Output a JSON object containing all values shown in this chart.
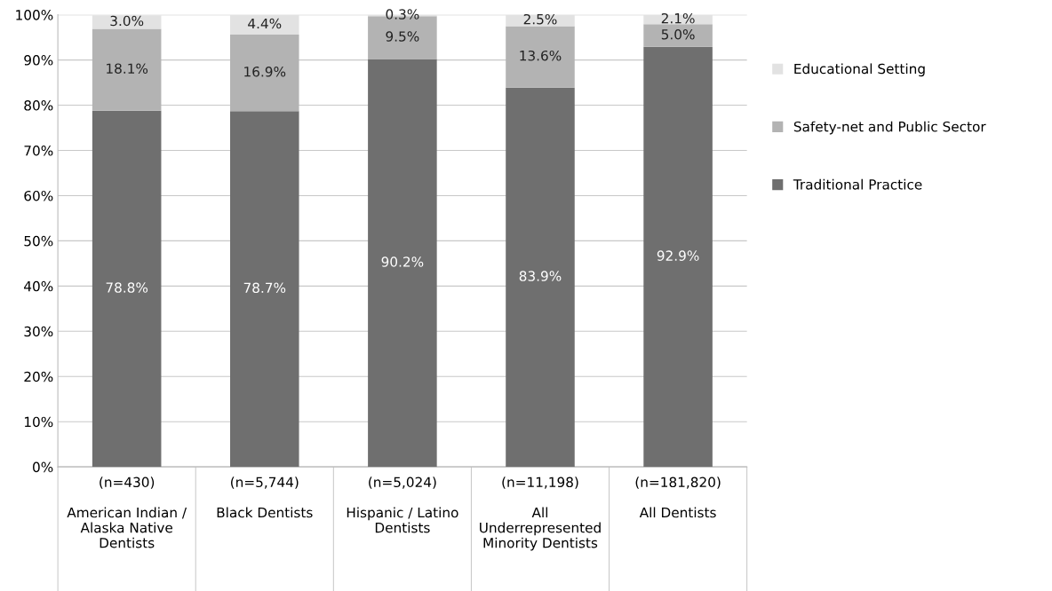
{
  "chart_data": {
    "type": "bar",
    "stacked": true,
    "categories": [
      "(n=430)\n\nAmerican Indian /\nAlaska Native\nDentists",
      "(n=5,744)\n\nBlack Dentists\n\n",
      "(n=5,024)\n\nHispanic / Latino\nDentists\n",
      "(n=11,198)\n\nAll\nUnderrepresented\nMinority Dentists",
      "(n=181,820)\n\nAll Dentists\n\n"
    ],
    "series": [
      {
        "name": "Traditional Practice",
        "color": "#6f6f6f",
        "values": [
          78.8,
          78.7,
          90.2,
          83.9,
          92.9
        ],
        "value_labels": [
          "78.8%",
          "78.7%",
          "90.2%",
          "83.9%",
          "92.9%"
        ]
      },
      {
        "name": "Safety-net and Public Sector",
        "color": "#b3b3b3",
        "values": [
          18.1,
          16.9,
          9.5,
          13.6,
          5.0
        ],
        "value_labels": [
          "18.1%",
          "16.9%",
          "9.5%",
          "13.6%",
          "5.0%"
        ]
      },
      {
        "name": "Educational Setting",
        "color": "#e2e2e2",
        "values": [
          3.0,
          4.4,
          0.3,
          2.5,
          2.1
        ],
        "value_labels": [
          "3.0%",
          "4.4%",
          "0.3%",
          "2.5%",
          "2.1%"
        ]
      }
    ],
    "ylim": [
      0,
      100
    ],
    "yticks": [
      {
        "value": 0,
        "label": "0%"
      },
      {
        "value": 10,
        "label": "10%"
      },
      {
        "value": 20,
        "label": "20%"
      },
      {
        "value": 30,
        "label": "30%"
      },
      {
        "value": 40,
        "label": "40%"
      },
      {
        "value": 50,
        "label": "50%"
      },
      {
        "value": 60,
        "label": "60%"
      },
      {
        "value": 70,
        "label": "70%"
      },
      {
        "value": 80,
        "label": "80%"
      },
      {
        "value": 90,
        "label": "90%"
      },
      {
        "value": 100,
        "label": "100%"
      }
    ],
    "grid": "y",
    "legend": "right"
  }
}
